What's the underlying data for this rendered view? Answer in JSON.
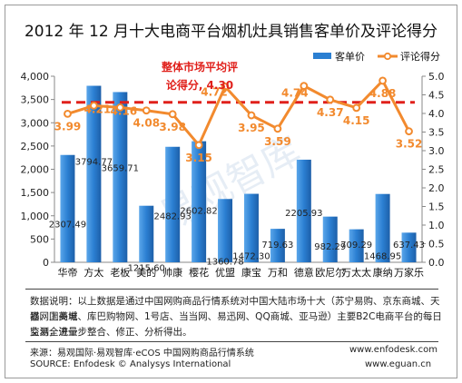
{
  "title": "2012 年 12 月十大电商平台烟机灶具销售客单价及评论得分",
  "legend": {
    "bar": "客单价",
    "line": "评论得分"
  },
  "avg_annotation": {
    "line1": "整体市场平均评",
    "line2": "论得分, 4.30"
  },
  "watermark": "易观智库",
  "colors": {
    "bar": "#2b7fd2",
    "line": "#f28a2e",
    "avg": "#e0201b",
    "label_orange": "#f28a2e"
  },
  "chart_data": {
    "type": "bar",
    "categories": [
      "华帝",
      "方太",
      "老板",
      "美的",
      "帅康",
      "樱花",
      "优盟",
      "康宝",
      "万和",
      "德意",
      "欧尼尔",
      "万太太",
      "康纳",
      "万家乐"
    ],
    "series": [
      {
        "name": "客单价",
        "type": "bar",
        "axis": "left",
        "values": [
          2307.49,
          3794.77,
          3659.71,
          1215.6,
          2482.93,
          2602.82,
          1360.78,
          1472.3,
          719.63,
          2205.93,
          982.29,
          709.29,
          1468.95,
          637.43
        ]
      },
      {
        "name": "评论得分",
        "type": "line",
        "axis": "right",
        "values": [
          3.99,
          4.21,
          4.16,
          4.08,
          3.98,
          3.15,
          4.72,
          3.95,
          3.59,
          4.74,
          4.37,
          4.15,
          4.88,
          3.52
        ]
      }
    ],
    "average_score": 4.3,
    "y_left": {
      "min": 0,
      "max": 4000,
      "ticks": [
        0,
        500,
        1000,
        1500,
        2000,
        2500,
        3000,
        3500,
        4000
      ],
      "tick_labels": [
        "0",
        "500",
        "1,000",
        "1,500",
        "2,000",
        "2,500",
        "3,000",
        "3,500",
        "4,000"
      ]
    },
    "y_right": {
      "min": 0,
      "max": 5,
      "ticks": [
        0,
        0.5,
        1,
        1.5,
        2,
        2.5,
        3,
        3.5,
        4,
        4.5,
        5
      ],
      "tick_labels": [
        "0.0",
        "0.5",
        "1.0",
        "1.5",
        "2.0",
        "2.5",
        "3.0",
        "3.5",
        "4.0",
        "4.5",
        "5.0"
      ]
    },
    "bar_labels": [
      "2307.49",
      "3794.77",
      "3659.71",
      "1215.60",
      "2482.93",
      "2602.82",
      "1360.78",
      "1472.30",
      "719.63",
      "2205.93",
      "982.29",
      "709.29",
      "1468.95",
      "637.43"
    ],
    "score_labels": [
      "3.99",
      "4.21",
      "4.16",
      "4.08",
      "3.98",
      "3.15",
      "4.72",
      "3.95",
      "3.59",
      "4.74",
      "4.37",
      "4.15",
      "4.88",
      "3.52"
    ]
  },
  "note": {
    "line1": "数据说明：以上数据是通过中国网购商品行情系统对中国大陆市场十大（苏宁易购、京东商城、天猫、国美电",
    "line2": "器网上商城、库巴购物网、1号店、当当网、易迅网、QQ商城、亚马逊）主要B2C电商平台的每日交易全流量",
    "line3": "监测，进一步整合、修正、分析得出。"
  },
  "source": {
    "cn": "来源：易观国际·易观智库·eCOS 中国网购商品行情系统",
    "en": "SOURCE: Enfodesk © Analysys International",
    "url1": "www.enfodesk.com",
    "url2": "www.eguan.cn"
  }
}
